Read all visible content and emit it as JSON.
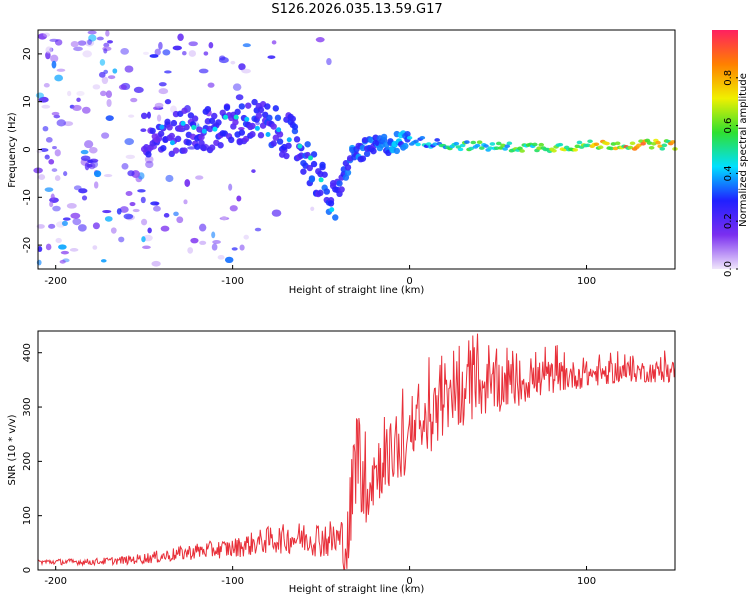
{
  "figure_title": "S126.2026.035.13.59.G17",
  "colors": {
    "frame": "#000000",
    "snr_line": "#e8303a",
    "spectrum_dots": "#6a1fe0",
    "colormap_stops": [
      "#f0e6fb",
      "#7b2ff0",
      "#2020ff",
      "#00e0ff",
      "#30e030",
      "#f0f000",
      "#ff8000",
      "#ff2060"
    ]
  },
  "chart_data": [
    {
      "type": "heatmap",
      "title": "S126.2026.035.13.59.G17",
      "xlabel": "Height of straight line (km)",
      "ylabel": "Frequency (Hz)",
      "xlim": [
        -210,
        150
      ],
      "ylim": [
        -25,
        25
      ],
      "xticks": [
        -200,
        -100,
        0,
        100
      ],
      "yticks": [
        -20,
        -10,
        0,
        10,
        20
      ],
      "colorbar": {
        "label": "Normalized spectral amplitude",
        "range": [
          0,
          1
        ],
        "ticks": [
          0.0,
          0.2,
          0.4,
          0.6,
          0.8
        ]
      },
      "ridge": [
        {
          "x": -140,
          "y": 3
        },
        {
          "x": -120,
          "y": 4
        },
        {
          "x": -100,
          "y": 5
        },
        {
          "x": -85,
          "y": 6
        },
        {
          "x": -75,
          "y": 4
        },
        {
          "x": -65,
          "y": 2
        },
        {
          "x": -58,
          "y": -2
        },
        {
          "x": -50,
          "y": -7
        },
        {
          "x": -45,
          "y": -10
        },
        {
          "x": -42,
          "y": -12
        },
        {
          "x": -38,
          "y": -6
        },
        {
          "x": -32,
          "y": -1
        },
        {
          "x": -25,
          "y": 0
        },
        {
          "x": -15,
          "y": 1
        },
        {
          "x": 0,
          "y": 2
        },
        {
          "x": 20,
          "y": 1
        },
        {
          "x": 50,
          "y": 0.5
        },
        {
          "x": 80,
          "y": 0.5
        },
        {
          "x": 110,
          "y": 1
        },
        {
          "x": 150,
          "y": 1
        }
      ],
      "ridge_amplitude": [
        {
          "x": -140,
          "a": 0.25
        },
        {
          "x": -60,
          "a": 0.3
        },
        {
          "x": -30,
          "a": 0.35
        },
        {
          "x": 0,
          "a": 0.4
        },
        {
          "x": 30,
          "a": 0.55
        },
        {
          "x": 80,
          "a": 0.65
        },
        {
          "x": 120,
          "a": 0.85
        },
        {
          "x": 150,
          "a": 0.8
        }
      ]
    },
    {
      "type": "line",
      "xlabel": "Height of straight line (km)",
      "ylabel": "SNR (10 * v/v)",
      "xlim": [
        -210,
        150
      ],
      "ylim": [
        0,
        440
      ],
      "xticks": [
        -200,
        -100,
        0,
        100
      ],
      "yticks": [
        0,
        100,
        200,
        300,
        400
      ],
      "series": [
        {
          "x": [
            -210,
            -180,
            -160,
            -140,
            -120,
            -100,
            -80,
            -60,
            -40,
            -35,
            -30,
            -25,
            -20,
            -15,
            -10,
            -5,
            0,
            5,
            10,
            20,
            30,
            40,
            50,
            60,
            80,
            100,
            120,
            150
          ],
          "y": [
            15,
            15,
            18,
            25,
            35,
            40,
            55,
            60,
            55,
            40,
            230,
            150,
            180,
            200,
            215,
            220,
            230,
            255,
            270,
            300,
            320,
            335,
            340,
            345,
            355,
            360,
            365,
            365
          ],
          "noise": [
            5,
            6,
            8,
            12,
            15,
            18,
            25,
            30,
            40,
            80,
            100,
            70,
            70,
            60,
            60,
            60,
            60,
            60,
            60,
            55,
            55,
            55,
            50,
            45,
            30,
            25,
            20,
            20
          ]
        }
      ]
    }
  ]
}
